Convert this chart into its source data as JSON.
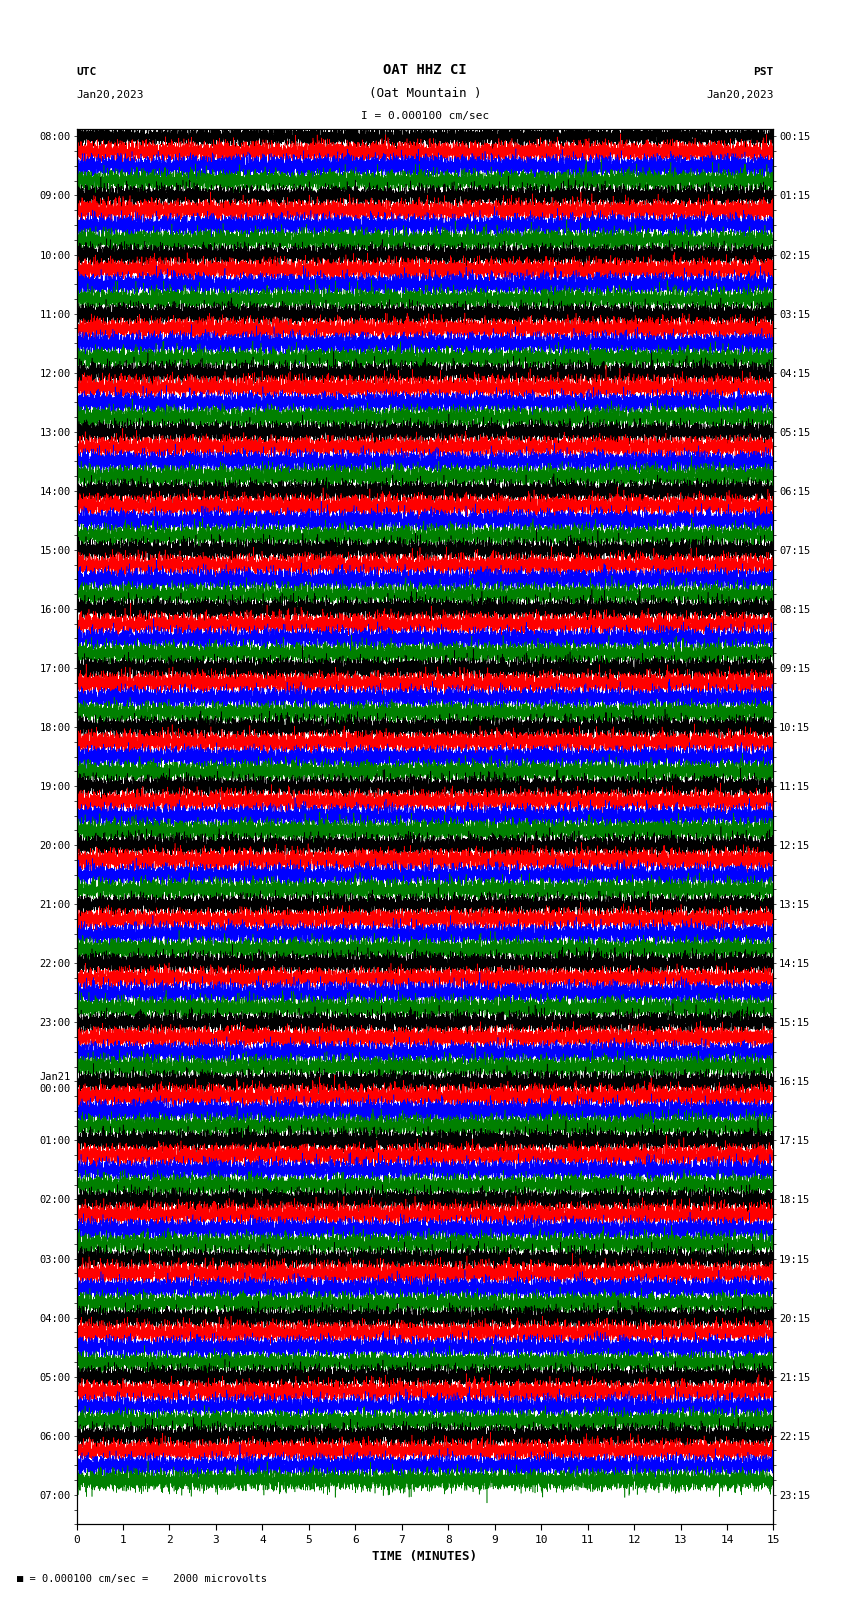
{
  "title_line1": "OAT HHZ CI",
  "title_line2": "(Oat Mountain )",
  "scale_text": "I = 0.000100 cm/sec",
  "left_header_line1": "UTC",
  "left_header_line2": "Jan20,2023",
  "right_header_line1": "PST",
  "right_header_line2": "Jan20,2023",
  "xlabel": "TIME (MINUTES)",
  "bottom_note": "= 0.000100 cm/sec =    2000 microvolts",
  "xmin": 0,
  "xmax": 15,
  "xticks": [
    0,
    1,
    2,
    3,
    4,
    5,
    6,
    7,
    8,
    9,
    10,
    11,
    12,
    13,
    14,
    15
  ],
  "left_times": [
    "08:00",
    "",
    "",
    "",
    "09:00",
    "",
    "",
    "",
    "10:00",
    "",
    "",
    "",
    "11:00",
    "",
    "",
    "",
    "12:00",
    "",
    "",
    "",
    "13:00",
    "",
    "",
    "",
    "14:00",
    "",
    "",
    "",
    "15:00",
    "",
    "",
    "",
    "16:00",
    "",
    "",
    "",
    "17:00",
    "",
    "",
    "",
    "18:00",
    "",
    "",
    "",
    "19:00",
    "",
    "",
    "",
    "20:00",
    "",
    "",
    "",
    "21:00",
    "",
    "",
    "",
    "22:00",
    "",
    "",
    "",
    "23:00",
    "",
    "",
    "",
    "Jan21\n00:00",
    "",
    "",
    "",
    "01:00",
    "",
    "",
    "",
    "02:00",
    "",
    "",
    "",
    "03:00",
    "",
    "",
    "",
    "04:00",
    "",
    "",
    "",
    "05:00",
    "",
    "",
    "",
    "06:00",
    "",
    "",
    "",
    "07:00",
    "",
    ""
  ],
  "right_times": [
    "00:15",
    "",
    "",
    "",
    "01:15",
    "",
    "",
    "",
    "02:15",
    "",
    "",
    "",
    "03:15",
    "",
    "",
    "",
    "04:15",
    "",
    "",
    "",
    "05:15",
    "",
    "",
    "",
    "06:15",
    "",
    "",
    "",
    "07:15",
    "",
    "",
    "",
    "08:15",
    "",
    "",
    "",
    "09:15",
    "",
    "",
    "",
    "10:15",
    "",
    "",
    "",
    "11:15",
    "",
    "",
    "",
    "12:15",
    "",
    "",
    "",
    "13:15",
    "",
    "",
    "",
    "14:15",
    "",
    "",
    "",
    "15:15",
    "",
    "",
    "",
    "16:15",
    "",
    "",
    "",
    "17:15",
    "",
    "",
    "",
    "18:15",
    "",
    "",
    "",
    "19:15",
    "",
    "",
    "",
    "20:15",
    "",
    "",
    "",
    "21:15",
    "",
    "",
    "",
    "22:15",
    "",
    "",
    "",
    "23:15",
    "",
    ""
  ],
  "trace_colors": [
    "black",
    "red",
    "blue",
    "green"
  ],
  "n_traces": 92,
  "amplitude": 0.85,
  "background_color": "white",
  "line_width": 0.4,
  "fig_width": 8.5,
  "fig_height": 16.13,
  "dpi": 100
}
